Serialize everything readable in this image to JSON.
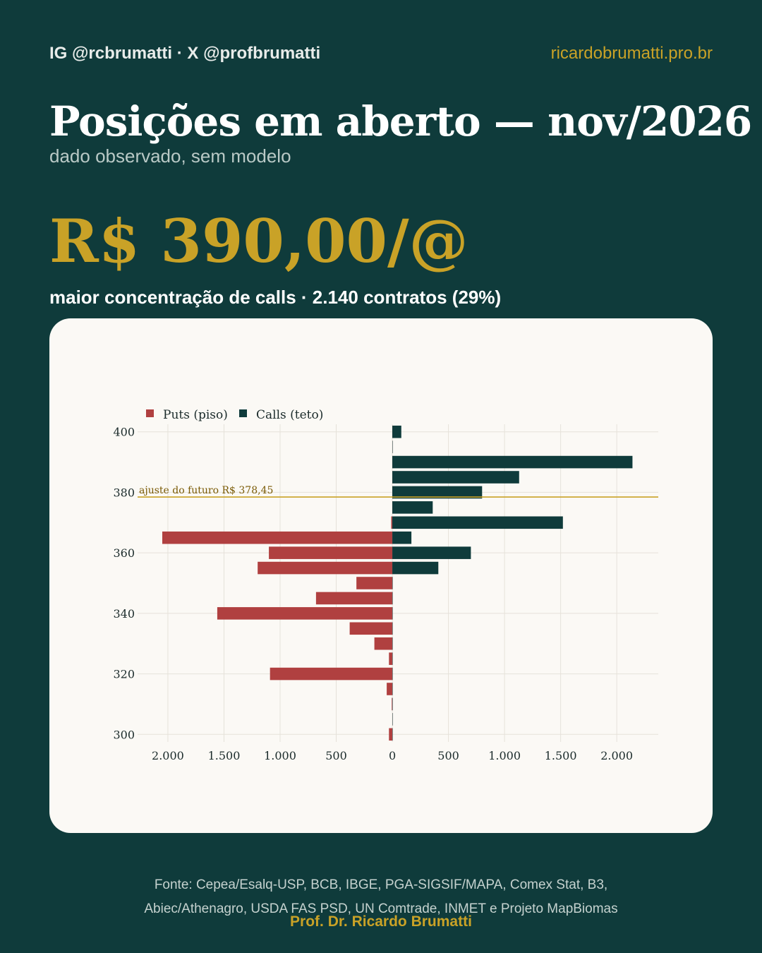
{
  "header": {
    "handle": "IG @rcbrumatti · X @profbrumatti",
    "site": "ricardobrumatti.pro.br"
  },
  "title": "Posições em aberto — nov/2026",
  "subtitle": "dado observado, sem modelo",
  "price": "R$ 390,00/@",
  "headline": "maior concentração de calls · 2.140 contratos (29%)",
  "footer": {
    "source_line1": "Fonte: Cepea/Esalq-USP, BCB, IBGE, PGA-SIGSIF/MAPA, Comex Stat, B3,",
    "source_line2": "Abiec/Athenagro, USDA FAS PSD, UN Comtrade, INMET e Projeto MapBiomas",
    "author": "Prof. Dr. Ricardo Brumatti"
  },
  "colors": {
    "background": "#0f3b3b",
    "accent": "#c9a227",
    "puts": "#b04040",
    "calls": "#0f3b3b",
    "card": "#fbf9f5"
  },
  "chart_data": {
    "type": "bar",
    "orientation": "horizontal",
    "legend_position": "top-left",
    "grid": true,
    "strikes": [
      300,
      305,
      310,
      315,
      320,
      325,
      330,
      335,
      340,
      345,
      350,
      355,
      360,
      365,
      370,
      375,
      380,
      385,
      390,
      395,
      400
    ],
    "series": [
      {
        "name": "Puts (piso)",
        "values": [
          30,
          0,
          5,
          50,
          1090,
          30,
          160,
          380,
          1560,
          680,
          320,
          1200,
          1100,
          2050,
          10,
          0,
          0,
          0,
          0,
          0,
          0
        ]
      },
      {
        "name": "Calls (teto)",
        "values": [
          0,
          0,
          0,
          0,
          0,
          0,
          0,
          0,
          0,
          0,
          0,
          410,
          700,
          170,
          1520,
          360,
          800,
          1130,
          2140,
          0,
          80
        ]
      }
    ],
    "reference_line": {
      "value": 378.45,
      "label": "ajuste do futuro R$ 378,45"
    },
    "y_ticks": [
      300,
      320,
      340,
      360,
      380,
      400
    ],
    "y_tick_labels": [
      "300",
      "320",
      "340",
      "360",
      "380",
      "400"
    ],
    "x_ticks": [
      -2000,
      -1500,
      -1000,
      -500,
      0,
      500,
      1000,
      1500,
      2000
    ],
    "x_tick_labels": [
      "2.000",
      "1.500",
      "1.000",
      "500",
      "0",
      "500",
      "1.000",
      "1.500",
      "2.000"
    ],
    "xlim": [
      -2270,
      2370
    ],
    "ylim": [
      297.5,
      402.5
    ]
  }
}
